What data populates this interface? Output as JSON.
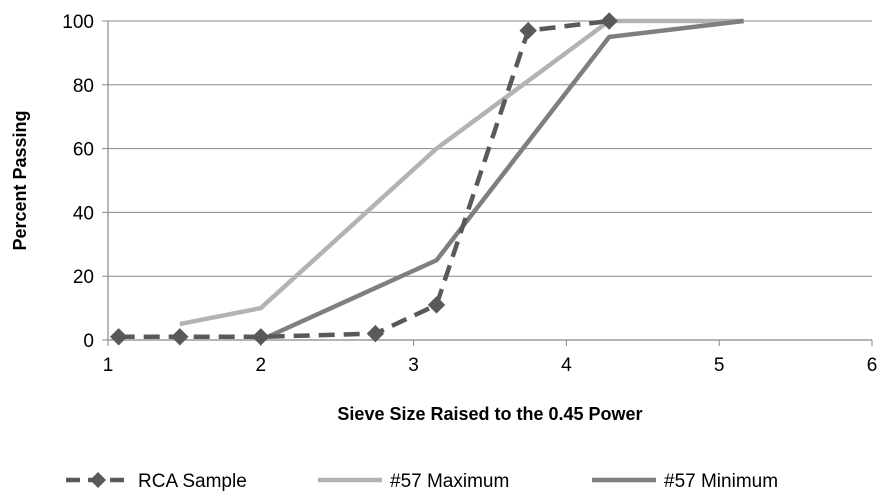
{
  "chart_data": {
    "type": "line",
    "title": "",
    "xlabel": "Sieve Size Raised to the 0.45 Power",
    "ylabel": "Percent Passing",
    "xlim": [
      1,
      6
    ],
    "ylim": [
      0,
      100
    ],
    "xticks": [
      1,
      2,
      3,
      4,
      5,
      6
    ],
    "yticks": [
      0,
      20,
      40,
      60,
      80,
      100
    ],
    "grid": "horizontal",
    "legend_position": "bottom",
    "series": [
      {
        "name": "RCA Sample",
        "style": "dashed-diamond",
        "color": "#595959",
        "points": [
          {
            "x": 1.07,
            "y": 1
          },
          {
            "x": 1.47,
            "y": 1
          },
          {
            "x": 2.0,
            "y": 1
          },
          {
            "x": 2.75,
            "y": 2
          },
          {
            "x": 3.15,
            "y": 11
          },
          {
            "x": 3.75,
            "y": 97
          },
          {
            "x": 4.28,
            "y": 100
          }
        ]
      },
      {
        "name": "#57 Maximum",
        "style": "solid",
        "color": "#b3b3b3",
        "points": [
          {
            "x": 1.47,
            "y": 5
          },
          {
            "x": 2.0,
            "y": 10
          },
          {
            "x": 3.15,
            "y": 60
          },
          {
            "x": 4.28,
            "y": 100
          },
          {
            "x": 5.16,
            "y": 100
          }
        ]
      },
      {
        "name": "#57 Minimum",
        "style": "solid",
        "color": "#7f7f7f",
        "points": [
          {
            "x": 2.0,
            "y": 0
          },
          {
            "x": 3.15,
            "y": 25
          },
          {
            "x": 4.28,
            "y": 95
          },
          {
            "x": 5.16,
            "y": 100
          }
        ]
      }
    ]
  }
}
